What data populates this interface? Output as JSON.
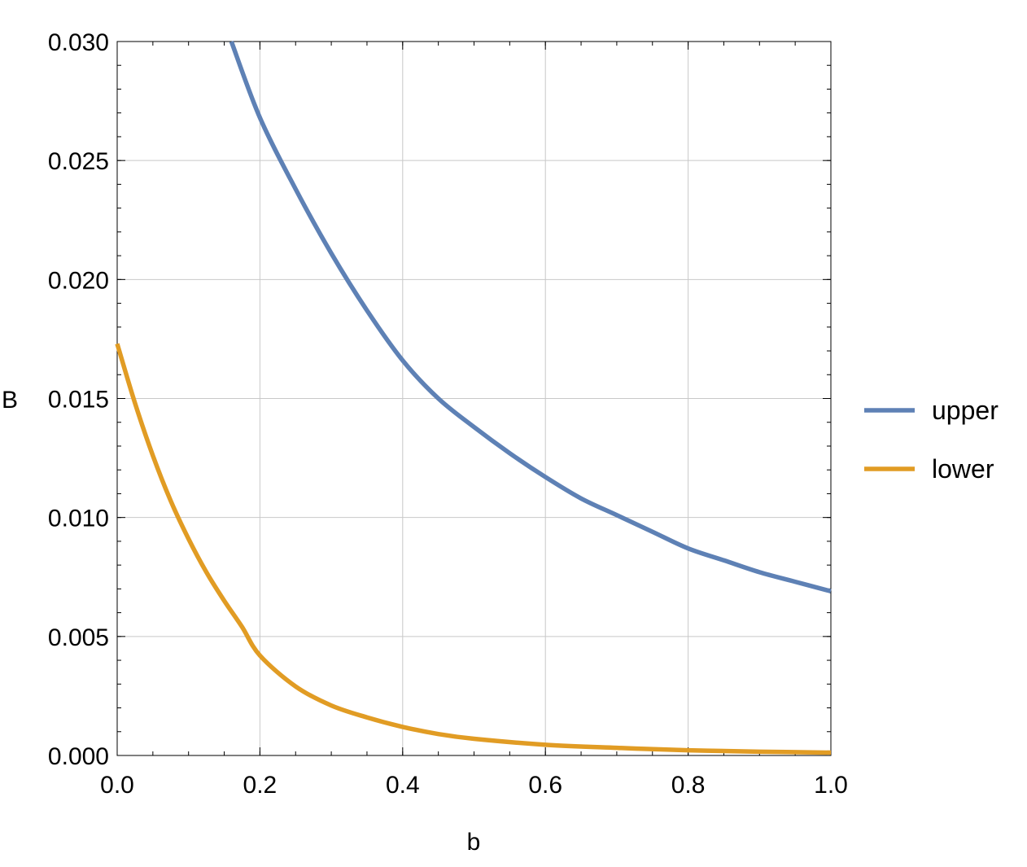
{
  "chart_data": {
    "type": "line",
    "title": "",
    "xlabel": "b",
    "ylabel": "B",
    "xlim": [
      0,
      1
    ],
    "ylim": [
      0,
      0.03
    ],
    "x_ticks": [
      "0.0",
      "0.2",
      "0.4",
      "0.6",
      "0.8",
      "1.0"
    ],
    "x_tick_values": [
      0,
      0.2,
      0.4,
      0.6,
      0.8,
      1.0
    ],
    "y_ticks": [
      "0.000",
      "0.005",
      "0.010",
      "0.015",
      "0.020",
      "0.025",
      "0.030"
    ],
    "y_tick_values": [
      0,
      0.005,
      0.01,
      0.015,
      0.02,
      0.025,
      0.03
    ],
    "grid": true,
    "legend_position": "right",
    "series": [
      {
        "name": "upper",
        "color": "#5e81b5",
        "x": [
          0.16,
          0.2,
          0.25,
          0.3,
          0.35,
          0.4,
          0.45,
          0.5,
          0.55,
          0.6,
          0.65,
          0.7,
          0.75,
          0.8,
          0.85,
          0.9,
          0.95,
          1.0
        ],
        "y": [
          0.03,
          0.0268,
          0.0238,
          0.0211,
          0.0187,
          0.0166,
          0.015,
          0.0138,
          0.0127,
          0.0117,
          0.0108,
          0.0101,
          0.0094,
          0.0087,
          0.0082,
          0.0077,
          0.0073,
          0.0069
        ]
      },
      {
        "name": "lower",
        "color": "#e19c24",
        "x": [
          0.0,
          0.025,
          0.05,
          0.075,
          0.1,
          0.125,
          0.15,
          0.175,
          0.2,
          0.25,
          0.3,
          0.35,
          0.4,
          0.45,
          0.5,
          0.6,
          0.7,
          0.8,
          0.9,
          1.0
        ],
        "y": [
          0.0173,
          0.0148,
          0.0126,
          0.0107,
          0.0091,
          0.0077,
          0.0065,
          0.0054,
          0.0042,
          0.0029,
          0.0021,
          0.0016,
          0.0012,
          0.0009,
          0.0007,
          0.00045,
          0.00032,
          0.00022,
          0.00016,
          0.00012
        ]
      }
    ]
  }
}
